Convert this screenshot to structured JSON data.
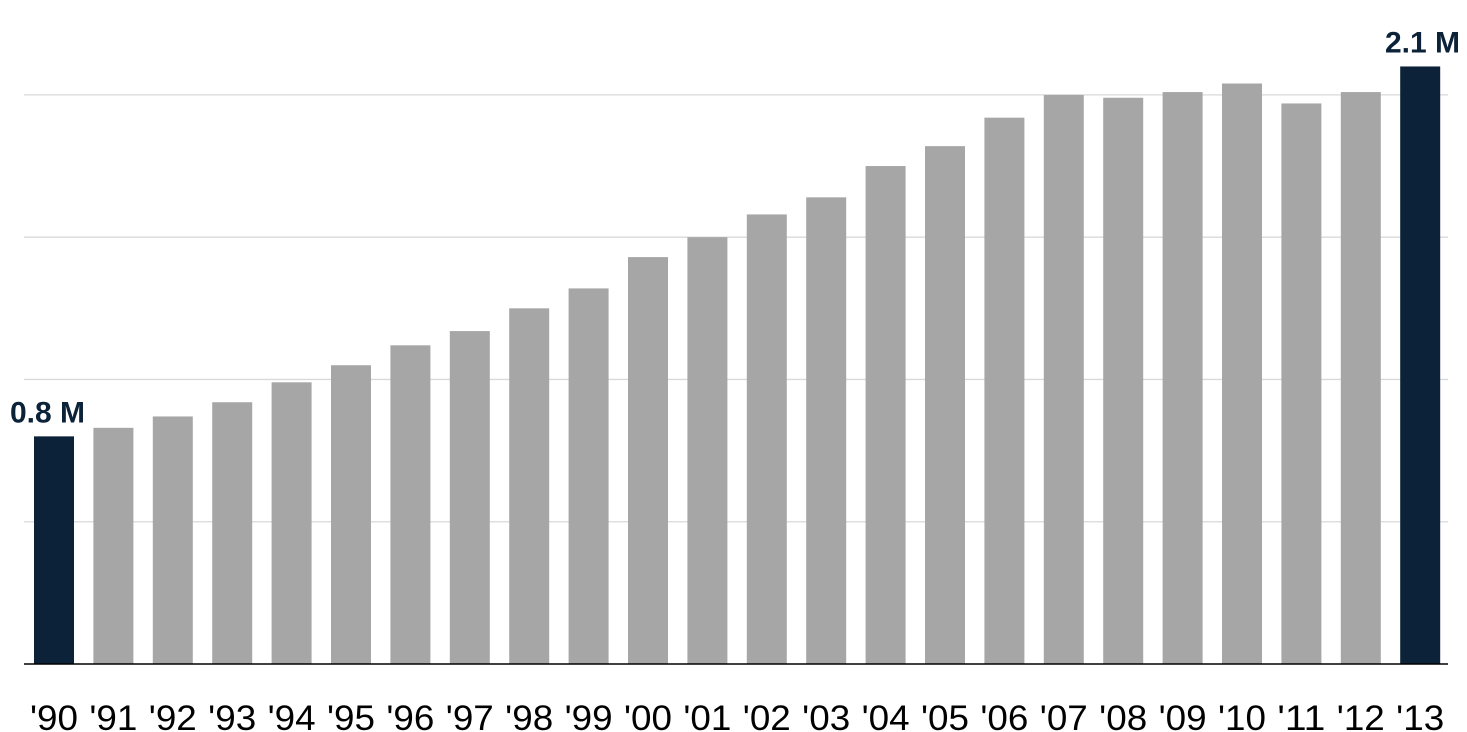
{
  "chart_data": {
    "type": "bar",
    "categories": [
      "'90",
      "'91",
      "'92",
      "'93",
      "'94",
      "'95",
      "'96",
      "'97",
      "'98",
      "'99",
      "'00",
      "'01",
      "'02",
      "'03",
      "'04",
      "'05",
      "'06",
      "'07",
      "'08",
      "'09",
      "'10",
      "'11",
      "'12",
      "'13"
    ],
    "values": [
      0.8,
      0.83,
      0.87,
      0.92,
      0.99,
      1.05,
      1.12,
      1.17,
      1.25,
      1.32,
      1.43,
      1.5,
      1.58,
      1.64,
      1.75,
      1.82,
      1.92,
      2.0,
      1.99,
      2.01,
      2.04,
      1.97,
      2.01,
      2.1
    ],
    "highlight": [
      0,
      23
    ],
    "data_labels": [
      {
        "index": 0,
        "text": "0.8 M"
      },
      {
        "index": 23,
        "text": "2.1 M"
      }
    ],
    "ylim": [
      0,
      2.2
    ],
    "gridlines": [
      0.5,
      1.0,
      1.5,
      2.0
    ],
    "grid": true,
    "title": "",
    "xlabel": "",
    "ylabel": "",
    "colors": {
      "bar": "#a6a6a6",
      "highlight": "#0b2239",
      "grid": "#d9d9d9",
      "axis": "#000000"
    }
  }
}
